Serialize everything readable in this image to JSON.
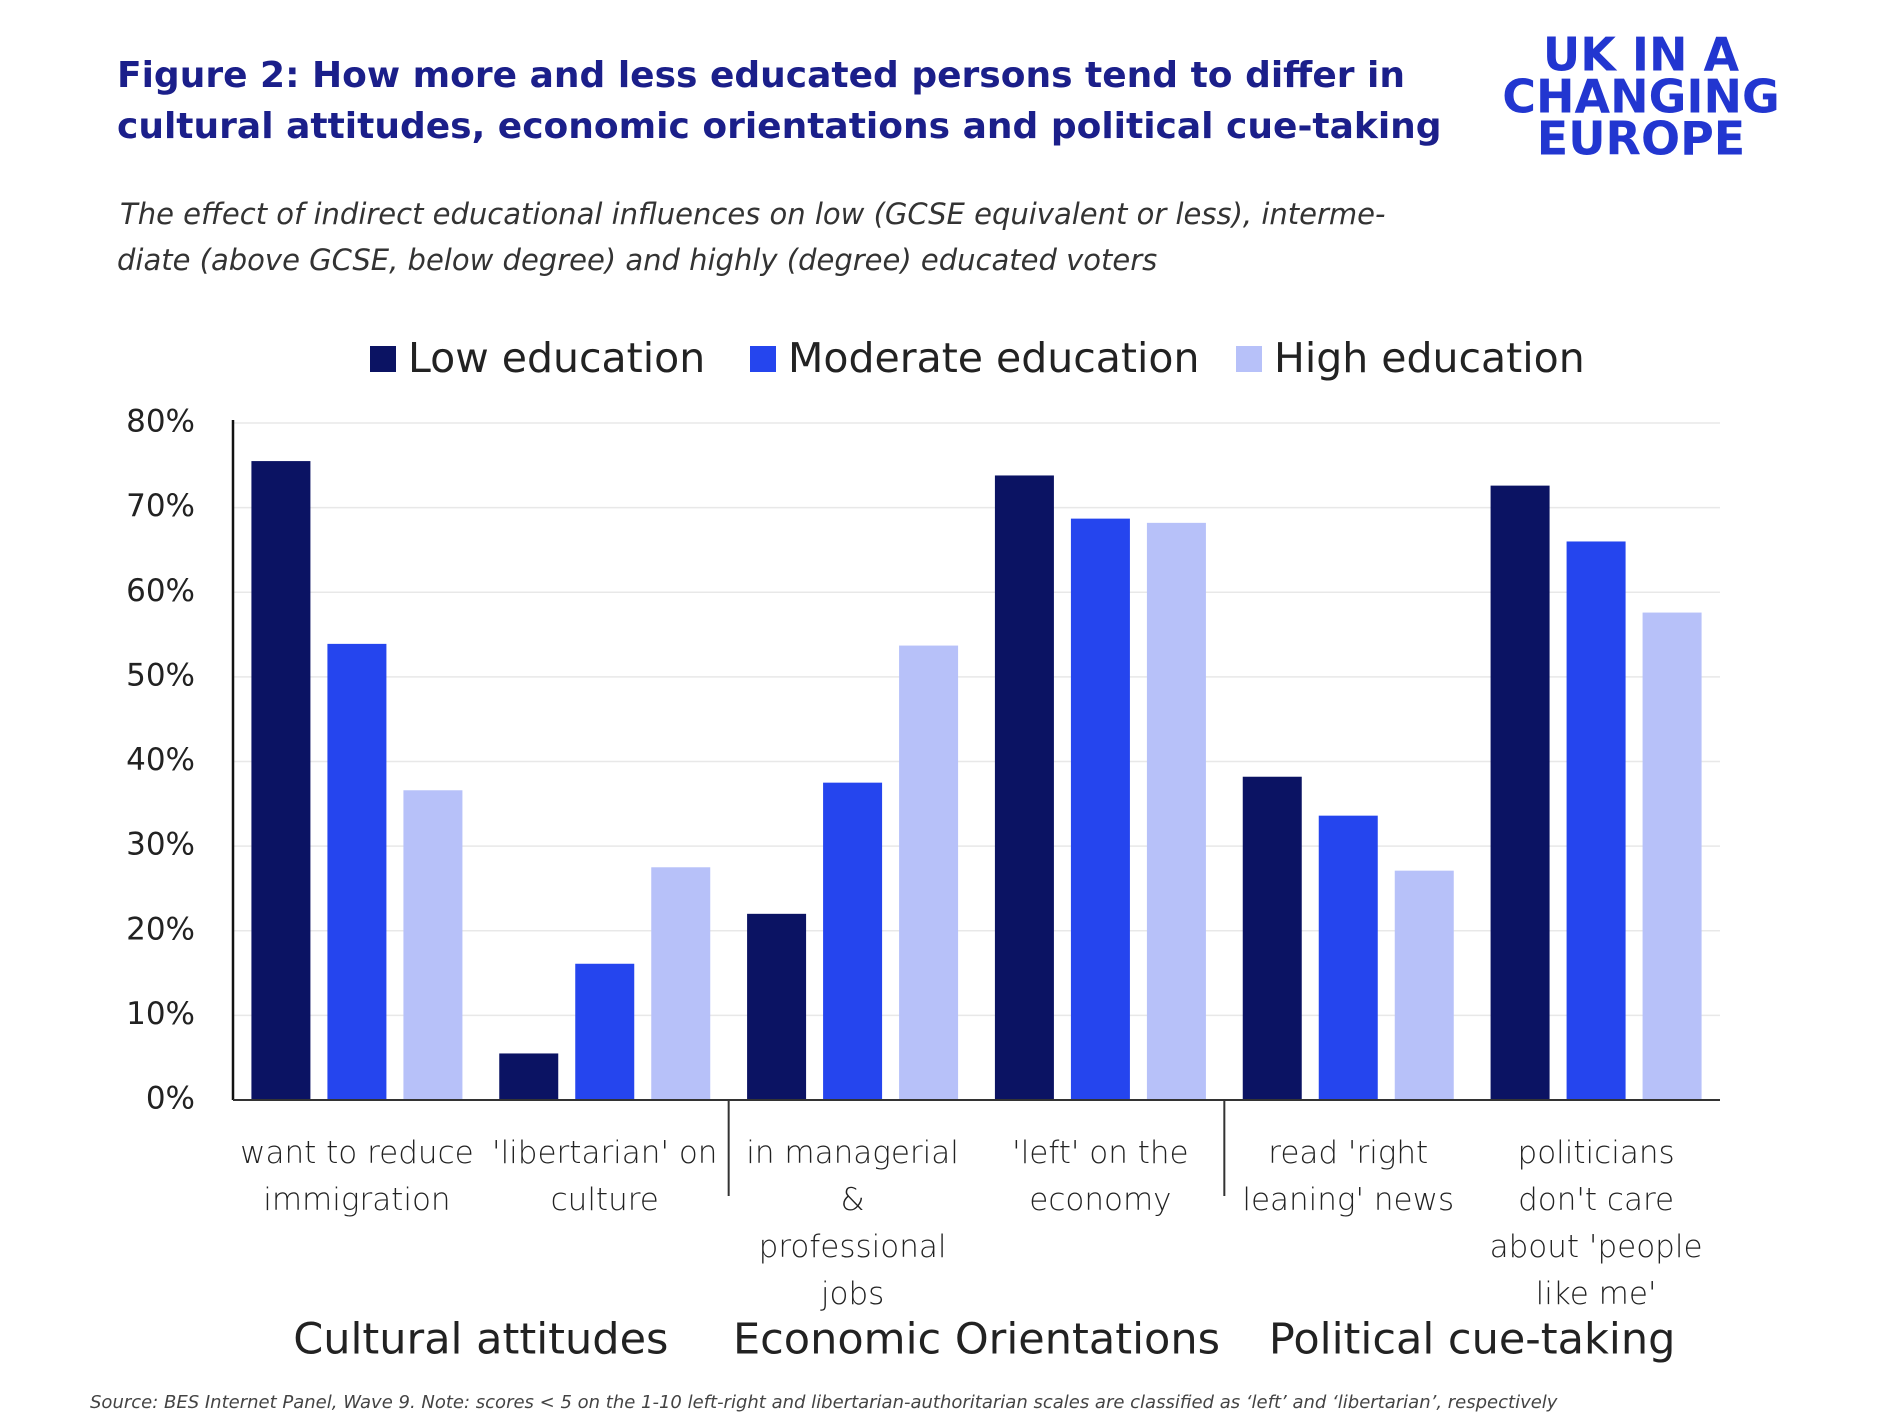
{
  "logo": [
    "UK IN A",
    "CHANGING",
    "EUROPE"
  ],
  "chart_data": {
    "type": "bar",
    "title": [
      "Figure 2: How more and less educated persons tend to differ in",
      "cultural attitudes, economic orientations and political cue-taking"
    ],
    "subtitle": [
      "The effect of indirect educational influences on low (GCSE equivalent or less), interme-",
      "diate (above GCSE, below degree) and highly (degree) educated voters"
    ],
    "categories": [
      "want to reduce\nimmigration",
      "'libertarian' on\nculture",
      "in managerial &\nprofessional\njobs",
      "'left' on the\neconomy",
      "read 'right\nleaning' news",
      "politicians\ndon't care\nabout 'people\nlike me'"
    ],
    "groups": [
      {
        "name": "Cultural attitudes",
        "span": [
          0,
          1
        ]
      },
      {
        "name": "Economic Orientations",
        "span": [
          2,
          3
        ]
      },
      {
        "name": "Political cue-taking",
        "span": [
          4,
          5
        ]
      }
    ],
    "series": [
      {
        "name": "Low education",
        "color": "#0b1363",
        "values": [
          75.5,
          5.5,
          22,
          73.8,
          38.2,
          72.6
        ]
      },
      {
        "name": "Moderate education",
        "color": "#2545ee",
        "values": [
          53.9,
          16.1,
          37.5,
          68.7,
          33.6,
          66
        ]
      },
      {
        "name": "High education",
        "color": "#b7c1f9",
        "values": [
          36.6,
          27.5,
          53.7,
          68.2,
          27.1,
          57.6
        ]
      }
    ],
    "ylim": [
      0,
      80
    ],
    "yticks": [
      {
        "value": 0,
        "label": "0%"
      },
      {
        "value": 10,
        "label": "10%"
      },
      {
        "value": 20,
        "label": "20%"
      },
      {
        "value": 30,
        "label": "30%"
      },
      {
        "value": 40,
        "label": "40%"
      },
      {
        "value": 50,
        "label": "50%"
      },
      {
        "value": 60,
        "label": "60%"
      },
      {
        "value": 70,
        "label": "70%"
      },
      {
        "value": 80,
        "label": "80%"
      }
    ],
    "grid": true,
    "source": "Source: BES Internet Panel, Wave 9. Note: scores < 5 on the 1-10 left-right and libertarian-authoritarian scales are classified as ‘left’ and ‘libertarian’, respectively"
  }
}
